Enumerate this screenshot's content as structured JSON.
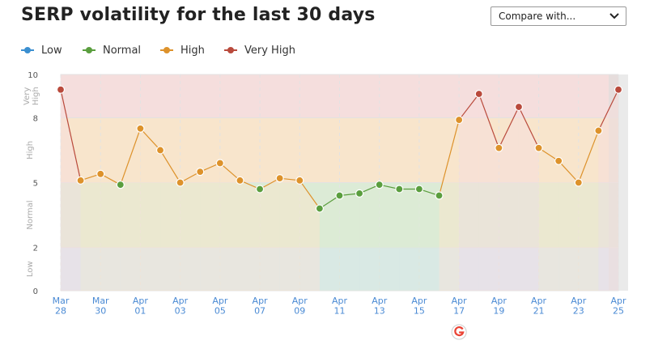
{
  "title": "SERP volatility for the last 30 days",
  "compare": {
    "label": "Compare with..."
  },
  "legend": [
    {
      "label": "Low",
      "color": "#3b8fd0"
    },
    {
      "label": "Normal",
      "color": "#5a9e3e"
    },
    {
      "label": "High",
      "color": "#dd922b"
    },
    {
      "label": "Very High",
      "color": "#b94a3c"
    }
  ],
  "chart_data": {
    "type": "area",
    "title": "SERP volatility for the last 30 days",
    "ylim": [
      0,
      10
    ],
    "y_ticks": [
      0,
      2,
      5,
      8,
      10
    ],
    "bands": [
      {
        "label": "Low",
        "from": 0,
        "to": 2,
        "color": "#d6e6f5"
      },
      {
        "label": "Normal",
        "from": 2,
        "to": 5,
        "color": "#dcebd6"
      },
      {
        "label": "High",
        "from": 5,
        "to": 8,
        "color": "#f8e5cc"
      },
      {
        "label": "Very High",
        "from": 8,
        "to": 10,
        "color": "#f5dedd"
      }
    ],
    "x_labels": [
      [
        "Mar",
        "28"
      ],
      [
        "Mar",
        "30"
      ],
      [
        "Apr",
        "01"
      ],
      [
        "Apr",
        "03"
      ],
      [
        "Apr",
        "05"
      ],
      [
        "Apr",
        "07"
      ],
      [
        "Apr",
        "09"
      ],
      [
        "Apr",
        "11"
      ],
      [
        "Apr",
        "13"
      ],
      [
        "Apr",
        "15"
      ],
      [
        "Apr",
        "17"
      ],
      [
        "Apr",
        "19"
      ],
      [
        "Apr",
        "21"
      ],
      [
        "Apr",
        "23"
      ],
      [
        "Apr",
        "25"
      ]
    ],
    "x": [
      "Mar 28",
      "Mar 29",
      "Mar 30",
      "Mar 31",
      "Apr 01",
      "Apr 02",
      "Apr 03",
      "Apr 04",
      "Apr 05",
      "Apr 06",
      "Apr 07",
      "Apr 08",
      "Apr 09",
      "Apr 10",
      "Apr 11",
      "Apr 12",
      "Apr 13",
      "Apr 14",
      "Apr 15",
      "Apr 16",
      "Apr 17",
      "Apr 18",
      "Apr 19",
      "Apr 20",
      "Apr 21",
      "Apr 22",
      "Apr 23",
      "Apr 24",
      "Apr 25"
    ],
    "values": [
      9.3,
      5.1,
      5.4,
      4.9,
      7.5,
      6.5,
      5.0,
      5.5,
      5.9,
      5.1,
      4.7,
      5.2,
      5.1,
      3.8,
      4.4,
      4.5,
      4.9,
      4.7,
      4.7,
      4.4,
      7.9,
      9.1,
      6.6,
      8.5,
      6.6,
      6.0,
      5.0,
      7.4,
      9.3
    ],
    "annotations": [
      {
        "x": "Apr 17",
        "icon": "google-icon"
      }
    ],
    "highlight_last": true
  }
}
